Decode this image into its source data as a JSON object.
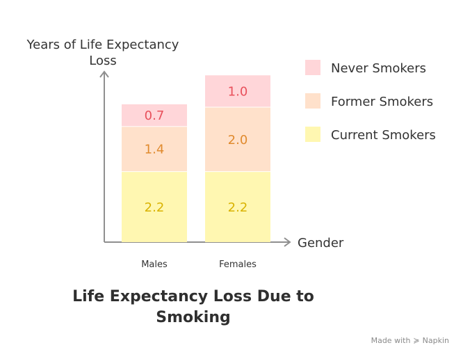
{
  "chart_data": {
    "type": "bar",
    "stacked": true,
    "title": "Life Expectancy Loss Due to Smoking",
    "ylabel": "Years of Life Expectancy Loss",
    "xlabel": "Gender",
    "categories": [
      "Males",
      "Females"
    ],
    "series": [
      {
        "name": "Current Smokers",
        "values": [
          2.2,
          2.2
        ],
        "fill": "#FFF7B1",
        "label_color": "#D9B200"
      },
      {
        "name": "Former Smokers",
        "values": [
          1.4,
          2.0
        ],
        "fill": "#FFE1CB",
        "label_color": "#E08A2E"
      },
      {
        "name": "Never Smokers",
        "values": [
          0.7,
          1.0
        ],
        "fill": "#FFD6D9",
        "label_color": "#E8505B"
      }
    ],
    "legend": {
      "position": "right",
      "order": [
        "Never Smokers",
        "Former Smokers",
        "Current Smokers"
      ]
    },
    "grid": false
  },
  "footer": {
    "made_with": "Made with",
    "brand": "Napkin"
  }
}
